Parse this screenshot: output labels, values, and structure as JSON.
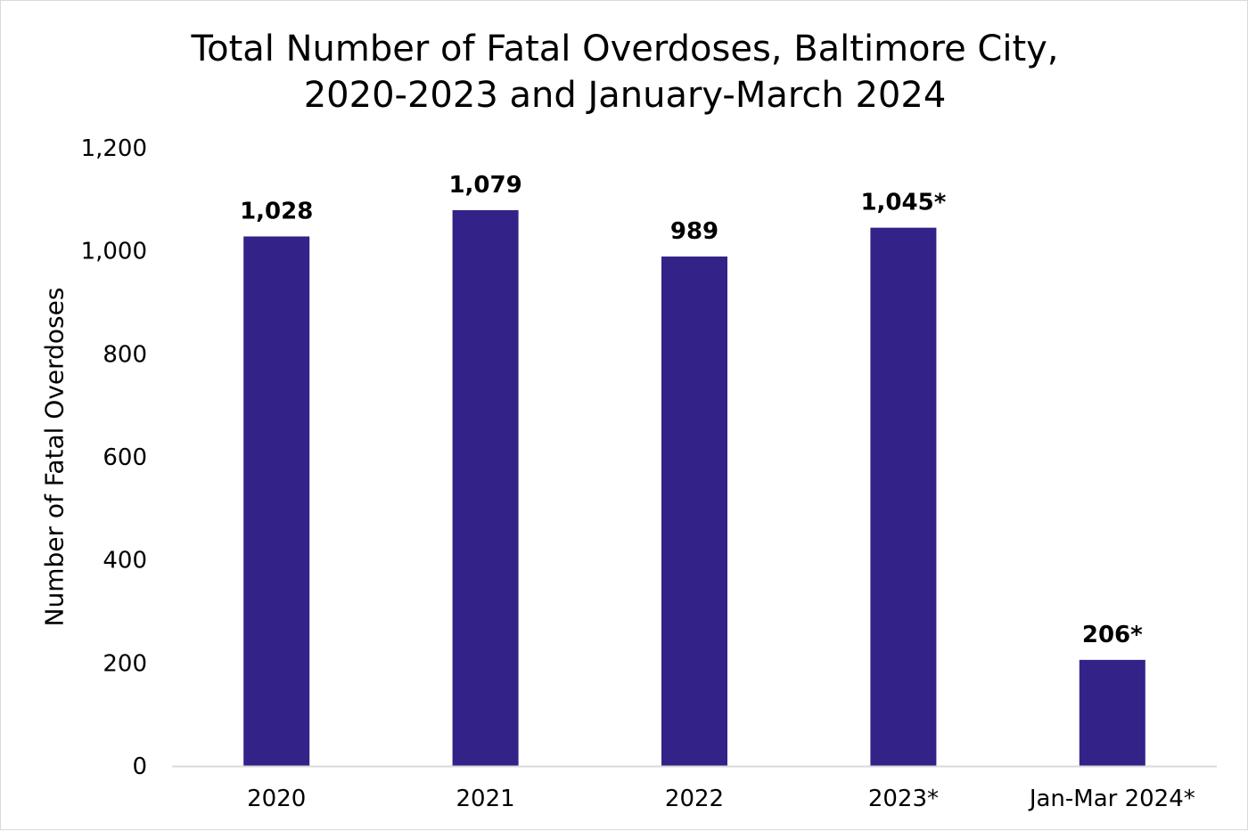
{
  "chart_data": {
    "type": "bar",
    "title_line1": "Total Number of Fatal Overdoses, Baltimore City,",
    "title_line2": "2020-2023 and January-March 2024",
    "xlabel": "",
    "ylabel": "Number of Fatal Overdoses",
    "ylim": [
      0,
      1200
    ],
    "yticks": [
      0,
      200,
      400,
      600,
      800,
      1000,
      1200
    ],
    "ytick_labels": [
      "0",
      "200",
      "400",
      "600",
      "800",
      "1,000",
      "1,200"
    ],
    "categories": [
      "2020",
      "2021",
      "2022",
      "2023*",
      "Jan-Mar 2024*"
    ],
    "values": [
      1028,
      1079,
      989,
      1045,
      206
    ],
    "data_labels": [
      "1,028",
      "1,079",
      "989",
      "1,045*",
      "206*"
    ],
    "bar_color": "#332288",
    "grid": false,
    "legend": "none"
  }
}
